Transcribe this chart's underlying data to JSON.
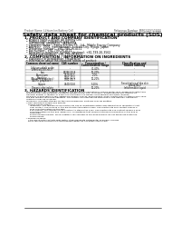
{
  "background_color": "#ffffff",
  "header_left": "Product Name: Lithium Ion Battery Cell",
  "header_right_line1": "Reference Number: MIP0222SY-03010",
  "header_right_line2": "Established / Revision: Dec.7.2010",
  "title": "Safety data sheet for chemical products (SDS)",
  "section1_title": "1. PRODUCT AND COMPANY IDENTIFICATION",
  "section1_lines": [
    "  • Product name: Lithium Ion Battery Cell",
    "  • Product code: Cylindrical-type cell",
    "     (UR18650A, UR18650L, UR18650A,",
    "  • Company name:   Sanyo Electric Co., Ltd., Mobile Energy Company",
    "  • Address:   2001  Kamitakanari, Sumoto-City, Hyogo, Japan",
    "  • Telephone number:   +81-799-26-4111",
    "  • Fax number:  +81-799-26-4121",
    "  • Emergency telephone number (daytime): +81-799-26-3562",
    "     (Night and holidays): +81-799-26-4121"
  ],
  "section2_title": "2. COMPOSITION / INFORMATION ON INGREDIENTS",
  "section2_lines": [
    "  • Substance or preparation: Preparation",
    "  • Information about the chemical nature of product:"
  ],
  "table_headers": [
    "Common chemical name",
    "CAS number",
    "Concentration /\nConcentration range",
    "Classification and\nhazard labeling"
  ],
  "table_rows": [
    [
      "Lithium cobalt oxide\n(LiMnCoO₂(LiCrO₂))",
      "-",
      "30-40%",
      "-"
    ],
    [
      "Iron",
      "26266-50-8",
      "10-20%",
      "-"
    ],
    [
      "Aluminium",
      "7429-90-5",
      "2-5%",
      "-"
    ],
    [
      "Graphite\n(Metal in graphite+)\n(Al-Mn graphite+)",
      "7782-42-5\n7782-44-7",
      "10-20%",
      "-"
    ],
    [
      "Copper",
      "7440-50-8",
      "5-10%",
      "Sensitization of the skin\ngroup No.2"
    ],
    [
      "Organic electrolyte",
      "-",
      "10-20%",
      "Inflammable liquid"
    ]
  ],
  "section3_title": "3. HAZARDS IDENTIFICATION",
  "section3_text": [
    "   For the battery cell, chemical materials are stored in a hermetically sealed metal case, designed to withstand",
    "   temperatures and pressures-conditions during normal use. As a result, during normal use, there is no",
    "   physical danger of ignition or explosion and there's no danger of hazardous materials leakage.",
    "   However, if exposed to a fire, added mechanical shocks, decomposed, under electro-electro-stimuli may case,",
    "   the gas release cannot be operated. The battery cell case will be breached or fire-patches, hazardous",
    "   materials may be released.",
    "   Moreover, if heated strongly by the surrounding fire, emit gas may be emitted.",
    "",
    "  • Most important hazard and effects:",
    "     Human health effects:",
    "        Inhalation: The release of the electrolyte has an anesthesia action and stimulates in respiratory tract.",
    "        Skin contact: The release of the electrolyte stimulates a skin. The electrolyte skin contact causes a",
    "        sore and stimulation on the skin.",
    "        Eye contact: The release of the electrolyte stimulates eyes. The electrolyte eye contact causes a sore",
    "        and stimulation on the eye. Especially, a substance that causes a strong inflammation of the eye is",
    "        contained.",
    "        Environmental effects: Since a battery cell remains in the environment, do not throw out it into the",
    "        environment.",
    "",
    "  • Specific hazards:",
    "     If the electrolyte contacts with water, it will generate detrimental hydrogen fluoride.",
    "     Since the used electrolyte is inflammable liquid, do not bring close to fire."
  ],
  "footer_line": true
}
